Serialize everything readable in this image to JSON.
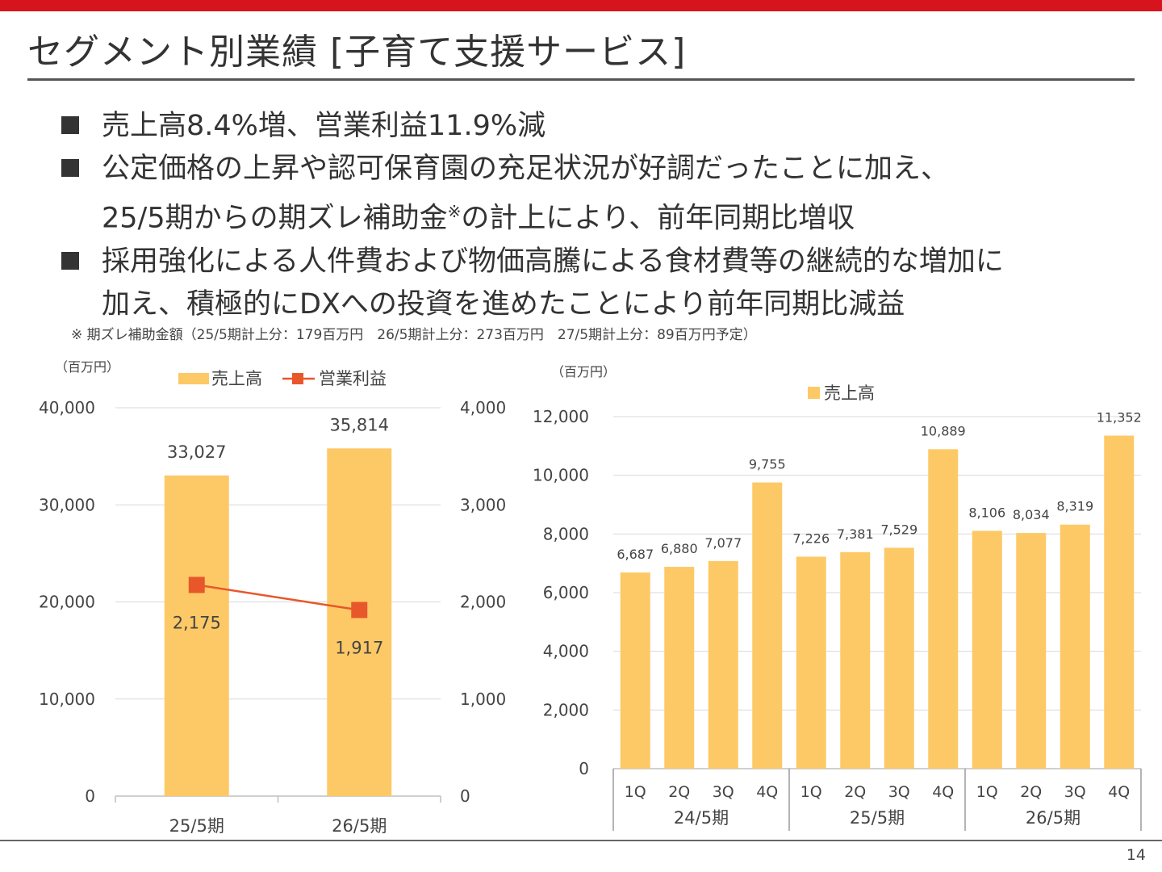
{
  "colors": {
    "accent_red": "#d7141e",
    "bar_yellow": "#fdc966",
    "line_orange": "#e8572a",
    "grid": "#d9d9d9"
  },
  "title": "セグメント別業績 [子育て支援サービス]",
  "bullets": [
    {
      "text": "売上高8.4%増、営業利益11.9%減"
    },
    {
      "text_line1": "公定価格の上昇や認可保育園の充足状況が好調だったことに加え、",
      "text_line2_pre": "25/5期からの期ズレ補助金",
      "text_line2_sup": "※",
      "text_line2_post": "の計上により、前年同期比増収"
    },
    {
      "text_line1": "採用強化による人件費および物価高騰による食材費等の継続的な増加に",
      "text_line2": "加え、積極的にDXへの投資を進めたことにより前年同期比減益"
    }
  ],
  "note": "※ 期ズレ補助金額（25/5期計上分：179百万円　26/5期計上分：273百万円　27/5期計上分：89百万円予定）",
  "page_number": "14",
  "chart_data": [
    {
      "type": "bar",
      "unit_label": "（百万円）",
      "categories": [
        "25/5期",
        "26/5期"
      ],
      "series": [
        {
          "name": "売上高",
          "kind": "bar",
          "axis": "left",
          "values": [
            33027,
            35814
          ],
          "labels": [
            "33,027",
            "35,814"
          ]
        },
        {
          "name": "営業利益",
          "kind": "line",
          "axis": "right",
          "values": [
            2175,
            1917
          ],
          "labels": [
            "2,175",
            "1,917"
          ]
        }
      ],
      "ylim_left": [
        0,
        40000
      ],
      "yticks_left": [
        "0",
        "10,000",
        "20,000",
        "30,000",
        "40,000"
      ],
      "ylim_right": [
        0,
        4000
      ],
      "yticks_right": [
        "0",
        "1,000",
        "2,000",
        "3,000",
        "4,000"
      ],
      "legend_position": "top",
      "grid": true
    },
    {
      "type": "bar",
      "unit_label": "（百万円）",
      "groups": [
        "24/5期",
        "25/5期",
        "26/5期"
      ],
      "quarters": [
        "1Q",
        "2Q",
        "3Q",
        "4Q"
      ],
      "series": [
        {
          "name": "売上高",
          "values": [
            6687,
            6880,
            7077,
            9755,
            7226,
            7381,
            7529,
            10889,
            8106,
            8034,
            8319,
            11352
          ],
          "labels": [
            "6,687",
            "6,880",
            "7,077",
            "9,755",
            "7,226",
            "7,381",
            "7,529",
            "10,889",
            "8,106",
            "8,034",
            "8,319",
            "11,352"
          ]
        }
      ],
      "ylim": [
        0,
        12000
      ],
      "yticks": [
        "0",
        "2,000",
        "4,000",
        "6,000",
        "8,000",
        "10,000",
        "12,000"
      ],
      "legend_position": "top",
      "grid": true
    }
  ]
}
